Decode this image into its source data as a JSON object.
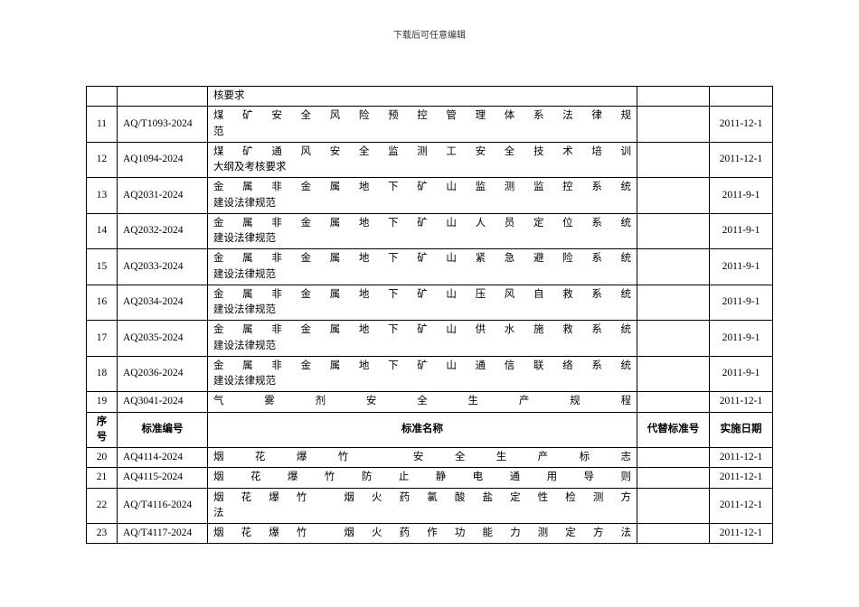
{
  "page_title": "下载后可任意编辑",
  "table": {
    "columns": {
      "seq": "序号",
      "code": "标准编号",
      "name": "标准名称",
      "replace": "代替标准号",
      "date": "实施日期"
    },
    "top_fragment": {
      "name": "核要求"
    },
    "rows_before": [
      {
        "seq": "11",
        "code": "AQ/T1093-2024",
        "name_l1": "煤矿安全风险预控管理体系法律规",
        "name_l2": "范",
        "date": "2011-12-1"
      },
      {
        "seq": "12",
        "code": "AQ1094-2024",
        "name_l1": "煤矿通风安全监测工安全技术培训",
        "name_l2": "大纲及考核要求",
        "date": "2011-12-1"
      },
      {
        "seq": "13",
        "code": "AQ2031-2024",
        "name_l1": "金属非金属地下矿山监测监控系统",
        "name_l2": "建设法律规范",
        "date": "2011-9-1"
      },
      {
        "seq": "14",
        "code": "AQ2032-2024",
        "name_l1": "金属非金属地下矿山人员定位系统",
        "name_l2": "建设法律规范",
        "date": "2011-9-1"
      },
      {
        "seq": "15",
        "code": "AQ2033-2024",
        "name_l1": "金属非金属地下矿山紧急避险系统",
        "name_l2": "建设法律规范",
        "date": "2011-9-1"
      },
      {
        "seq": "16",
        "code": "AQ2034-2024",
        "name_l1": "金属非金属地下矿山压风自救系统",
        "name_l2": "建设法律规范",
        "date": "2011-9-1"
      },
      {
        "seq": "17",
        "code": "AQ2035-2024",
        "name_l1": "金属非金属地下矿山供水施救系统",
        "name_l2": "建设法律规范",
        "date": "2011-9-1"
      },
      {
        "seq": "18",
        "code": "AQ2036-2024",
        "name_l1": "金属非金属地下矿山通信联络系统",
        "name_l2": "建设法律规范",
        "date": "2011-9-1"
      },
      {
        "seq": "19",
        "code": "AQ3041-2024",
        "name_single": "气雾剂安全生产规程",
        "date": "2011-12-1"
      }
    ],
    "rows_after": [
      {
        "seq": "20",
        "code": "AQ4114-2024",
        "name_single": "烟花爆竹 安全生产标志",
        "date": "2011-12-1"
      },
      {
        "seq": "21",
        "code": "AQ4115-2024",
        "name_single": "烟花爆竹防止静电通用导则",
        "date": "2011-12-1"
      },
      {
        "seq": "22",
        "code": "AQ/T4116-2024",
        "name_l1": "烟花爆竹  烟火药氯酸盐定性检测方",
        "name_l2": "法",
        "date": "2011-12-1"
      },
      {
        "seq": "23",
        "code": "AQ/T4117-2024",
        "name_single": "烟花爆竹  烟火药作功能力测定方法",
        "date": "2011-12-1"
      }
    ]
  }
}
